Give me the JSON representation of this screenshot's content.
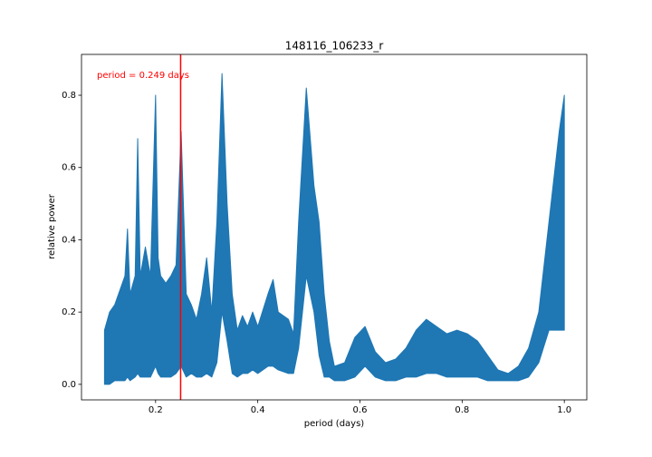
{
  "chart_data": {
    "type": "band",
    "title": "148116_106233_r",
    "x_label": "period (days)",
    "y_label": "relative power",
    "x": [
      0.1,
      0.11,
      0.12,
      0.13,
      0.14,
      0.145,
      0.15,
      0.16,
      0.165,
      0.17,
      0.18,
      0.19,
      0.2,
      0.205,
      0.21,
      0.22,
      0.23,
      0.24,
      0.25,
      0.26,
      0.27,
      0.28,
      0.29,
      0.3,
      0.31,
      0.32,
      0.33,
      0.34,
      0.35,
      0.36,
      0.37,
      0.38,
      0.39,
      0.4,
      0.42,
      0.43,
      0.44,
      0.46,
      0.47,
      0.48,
      0.495,
      0.51,
      0.52,
      0.53,
      0.54,
      0.55,
      0.57,
      0.59,
      0.61,
      0.63,
      0.65,
      0.67,
      0.69,
      0.71,
      0.73,
      0.75,
      0.77,
      0.79,
      0.81,
      0.83,
      0.85,
      0.87,
      0.89,
      0.91,
      0.93,
      0.95,
      0.97,
      0.99,
      1.0
    ],
    "series": [
      {
        "color": "#1f77b4",
        "values": [
          0.15,
          0.2,
          0.22,
          0.26,
          0.3,
          0.43,
          0.25,
          0.3,
          0.68,
          0.3,
          0.38,
          0.3,
          0.8,
          0.35,
          0.3,
          0.28,
          0.3,
          0.33,
          0.7,
          0.25,
          0.22,
          0.18,
          0.25,
          0.35,
          0.2,
          0.45,
          0.86,
          0.5,
          0.25,
          0.15,
          0.19,
          0.16,
          0.2,
          0.16,
          0.25,
          0.29,
          0.2,
          0.18,
          0.14,
          0.45,
          0.82,
          0.55,
          0.45,
          0.25,
          0.12,
          0.05,
          0.06,
          0.13,
          0.16,
          0.09,
          0.06,
          0.07,
          0.1,
          0.15,
          0.18,
          0.16,
          0.14,
          0.15,
          0.14,
          0.12,
          0.08,
          0.04,
          0.03,
          0.05,
          0.1,
          0.2,
          0.45,
          0.7,
          0.8
        ]
      },
      {
        "color": "#1f77b4",
        "values": [
          0,
          0,
          0.01,
          0.01,
          0.01,
          0.02,
          0.01,
          0.02,
          0.03,
          0.02,
          0.02,
          0.02,
          0.05,
          0.03,
          0.02,
          0.02,
          0.02,
          0.03,
          0.05,
          0.02,
          0.03,
          0.02,
          0.02,
          0.03,
          0.02,
          0.06,
          0.2,
          0.12,
          0.03,
          0.02,
          0.03,
          0.03,
          0.04,
          0.03,
          0.05,
          0.05,
          0.04,
          0.03,
          0.03,
          0.1,
          0.3,
          0.2,
          0.08,
          0.02,
          0.02,
          0.01,
          0.01,
          0.02,
          0.05,
          0.02,
          0.01,
          0.01,
          0.02,
          0.02,
          0.03,
          0.03,
          0.02,
          0.02,
          0.02,
          0.02,
          0.01,
          0.01,
          0.01,
          0.01,
          0.02,
          0.06,
          0.15,
          0.15,
          0.15
        ]
      }
    ],
    "marker": {
      "value": 0.249,
      "label": "period = 0.249 days",
      "color": "#ff0000"
    },
    "xlim": [
      0.055,
      1.044
    ],
    "ylim": [
      -0.043,
      0.913
    ],
    "xticks": [
      0.2,
      0.4,
      0.6,
      0.8,
      {
        "value": 1.0,
        "label": "1.0"
      }
    ],
    "yticks": [
      {
        "value": 0,
        "label": "0.0"
      },
      0.2,
      0.4,
      0.6,
      0.8
    ],
    "grid": false
  }
}
